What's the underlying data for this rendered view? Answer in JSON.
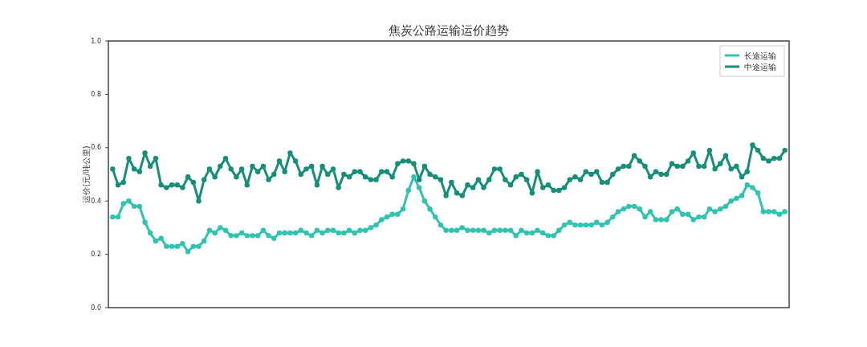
{
  "chart_data": {
    "type": "line",
    "title": "焦炭公路运输运价趋势",
    "ylabel": "运价(元/吨公里)",
    "categories": [
      null,
      null,
      null,
      null,
      null,
      null,
      null,
      null,
      null,
      null,
      null,
      null,
      null,
      null,
      null,
      null,
      null,
      null,
      null,
      null,
      null,
      null,
      null,
      null,
      null,
      null,
      null,
      null,
      null,
      null,
      null,
      null,
      null,
      null,
      null,
      null,
      null,
      null,
      null,
      null,
      null,
      null,
      null,
      null,
      null,
      null,
      null,
      null,
      null,
      null,
      null,
      null,
      null,
      null,
      null,
      null,
      null,
      null,
      null,
      null,
      null,
      null,
      null,
      null,
      null,
      null,
      null,
      null,
      null,
      null,
      null,
      null,
      null,
      null,
      null,
      null,
      null,
      null,
      null,
      null,
      null,
      null,
      null,
      null,
      null,
      null,
      null,
      null,
      null,
      null,
      null,
      null,
      null,
      null,
      null,
      null,
      null,
      null,
      null,
      null,
      null,
      null,
      null,
      null,
      null,
      null,
      null,
      null,
      null,
      null,
      null,
      null,
      null,
      null,
      null,
      null,
      null,
      null,
      null,
      null,
      null,
      null,
      null,
      null,
      null,
      null
    ],
    "series": [
      {
        "name": "长途运输",
        "color": "#2ec4b0",
        "values": [
          0.34,
          0.34,
          0.39,
          0.4,
          0.38,
          0.38,
          0.32,
          0.28,
          0.25,
          0.26,
          0.23,
          0.23,
          0.23,
          0.24,
          0.21,
          0.23,
          0.23,
          0.25,
          0.29,
          0.28,
          0.3,
          0.29,
          0.27,
          0.27,
          0.28,
          0.27,
          0.27,
          0.27,
          0.29,
          0.27,
          0.26,
          0.28,
          0.28,
          0.28,
          0.28,
          0.29,
          0.28,
          0.27,
          0.29,
          0.28,
          0.29,
          0.29,
          0.28,
          0.28,
          0.29,
          0.28,
          0.29,
          0.29,
          0.3,
          0.31,
          0.33,
          0.34,
          0.35,
          0.35,
          0.37,
          0.44,
          0.49,
          0.45,
          0.4,
          0.37,
          0.34,
          0.31,
          0.29,
          0.29,
          0.29,
          0.3,
          0.29,
          0.29,
          0.29,
          0.29,
          0.28,
          0.29,
          0.29,
          0.29,
          0.29,
          0.27,
          0.29,
          0.28,
          0.28,
          0.29,
          0.28,
          0.27,
          0.27,
          0.29,
          0.31,
          0.32,
          0.31,
          0.31,
          0.31,
          0.31,
          0.32,
          0.31,
          0.32,
          0.34,
          0.36,
          0.37,
          0.38,
          0.38,
          0.37,
          0.34,
          0.36,
          0.33,
          0.33,
          0.33,
          0.36,
          0.37,
          0.35,
          0.35,
          0.33,
          0.34,
          0.34,
          0.37,
          0.36,
          0.37,
          0.38,
          0.4,
          0.41,
          0.42,
          0.46,
          0.45,
          0.43,
          0.36,
          0.36,
          0.36,
          0.35,
          0.36
        ]
      },
      {
        "name": "中途运输",
        "color": "#168f78",
        "values": [
          0.52,
          0.46,
          0.47,
          0.56,
          0.52,
          0.51,
          0.58,
          0.53,
          0.56,
          0.46,
          0.45,
          0.46,
          0.46,
          0.45,
          0.49,
          0.47,
          0.4,
          0.48,
          0.52,
          0.49,
          0.53,
          0.56,
          0.52,
          0.49,
          0.52,
          0.46,
          0.53,
          0.51,
          0.53,
          0.48,
          0.5,
          0.55,
          0.51,
          0.58,
          0.55,
          0.5,
          0.52,
          0.53,
          0.46,
          0.53,
          0.5,
          0.52,
          0.45,
          0.5,
          0.49,
          0.51,
          0.51,
          0.49,
          0.48,
          0.48,
          0.51,
          0.51,
          0.49,
          0.54,
          0.55,
          0.55,
          0.54,
          0.48,
          0.53,
          0.5,
          0.49,
          0.48,
          0.42,
          0.47,
          0.43,
          0.42,
          0.46,
          0.45,
          0.48,
          0.45,
          0.48,
          0.52,
          0.52,
          0.48,
          0.46,
          0.49,
          0.5,
          0.48,
          0.43,
          0.51,
          0.45,
          0.46,
          0.44,
          0.44,
          0.45,
          0.48,
          0.49,
          0.48,
          0.51,
          0.5,
          0.51,
          0.47,
          0.47,
          0.5,
          0.52,
          0.53,
          0.53,
          0.57,
          0.55,
          0.53,
          0.49,
          0.51,
          0.5,
          0.5,
          0.54,
          0.53,
          0.53,
          0.55,
          0.58,
          0.53,
          0.53,
          0.59,
          0.52,
          0.54,
          0.57,
          0.52,
          0.53,
          0.49,
          0.51,
          0.61,
          0.59,
          0.56,
          0.55,
          0.56,
          0.56,
          0.59
        ]
      }
    ],
    "ylim": [
      0,
      1
    ],
    "yticks": [
      {
        "value": 0,
        "label": "0.0"
      },
      {
        "value": 0.2,
        "label": "0.2"
      },
      {
        "value": 0.4,
        "label": "0.4"
      },
      {
        "value": 0.6,
        "label": "0.6"
      },
      {
        "value": 0.8,
        "label": "0.8"
      },
      {
        "value": 1,
        "label": "1.0"
      }
    ],
    "grid": false,
    "legend": "top right",
    "marker": "circle",
    "line_style": "solid"
  }
}
